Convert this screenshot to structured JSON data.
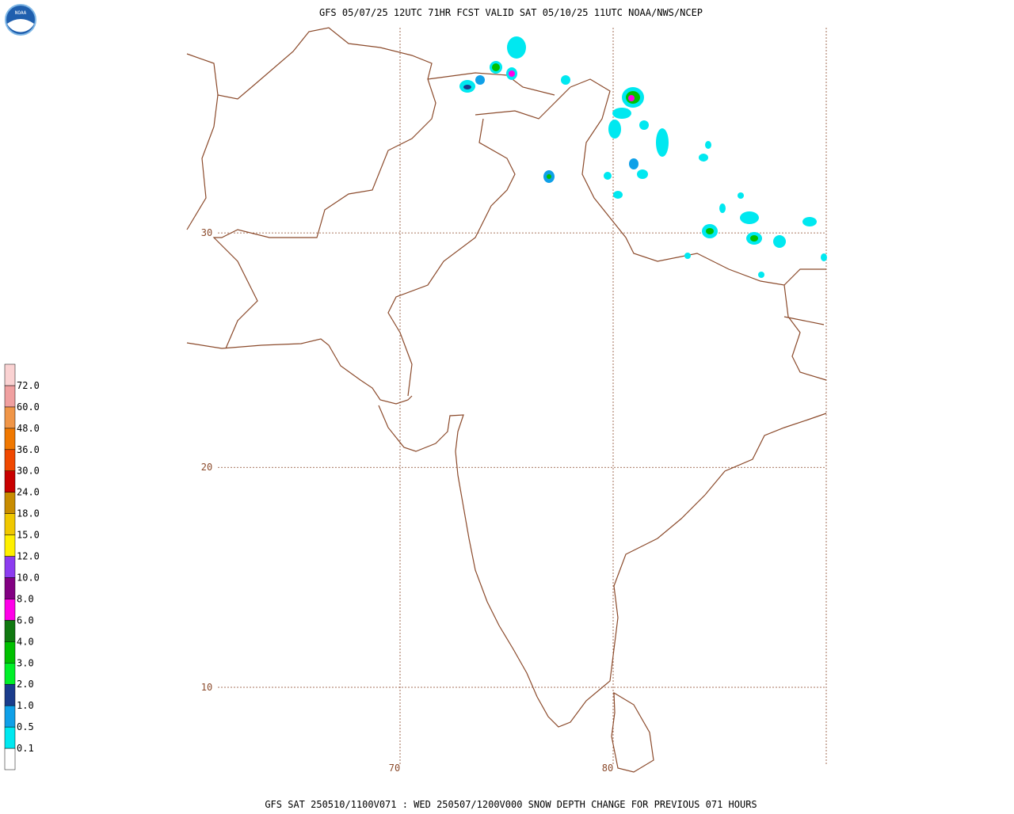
{
  "header": {
    "title": "GFS 05/07/25 12UTC 71HR FCST VALID SAT 05/10/25 11UTC NOAA/NWS/NCEP",
    "logo": "NOAA"
  },
  "footer": "GFS SAT 250510/1100V071 : WED 250507/1200V000 SNOW DEPTH CHANGE FOR PREVIOUS 071 HOURS",
  "grid": {
    "latitudes": [
      30,
      20,
      10
    ],
    "longitudes": [
      70,
      80
    ],
    "color": "#8b4a2b"
  },
  "legend": {
    "labels": [
      "0.1",
      "0.5",
      "1.0",
      "2.0",
      "3.0",
      "4.0",
      "6.0",
      "8.0",
      "10.0",
      "12.0",
      "15.0",
      "18.0",
      "24.0",
      "30.0",
      "36.0",
      "48.0",
      "60.0",
      "72.0"
    ],
    "colors": [
      "#ffffff",
      "#00e8f0",
      "#0fa0e8",
      "#1a3c8c",
      "#00f028",
      "#00c000",
      "#107810",
      "#ff00e8",
      "#820082",
      "#8c3cf0",
      "#fff000",
      "#f0c800",
      "#c88c00",
      "#c80000",
      "#f04800",
      "#f07800",
      "#f09648",
      "#f0a0a0",
      "#fad2d2"
    ]
  }
}
